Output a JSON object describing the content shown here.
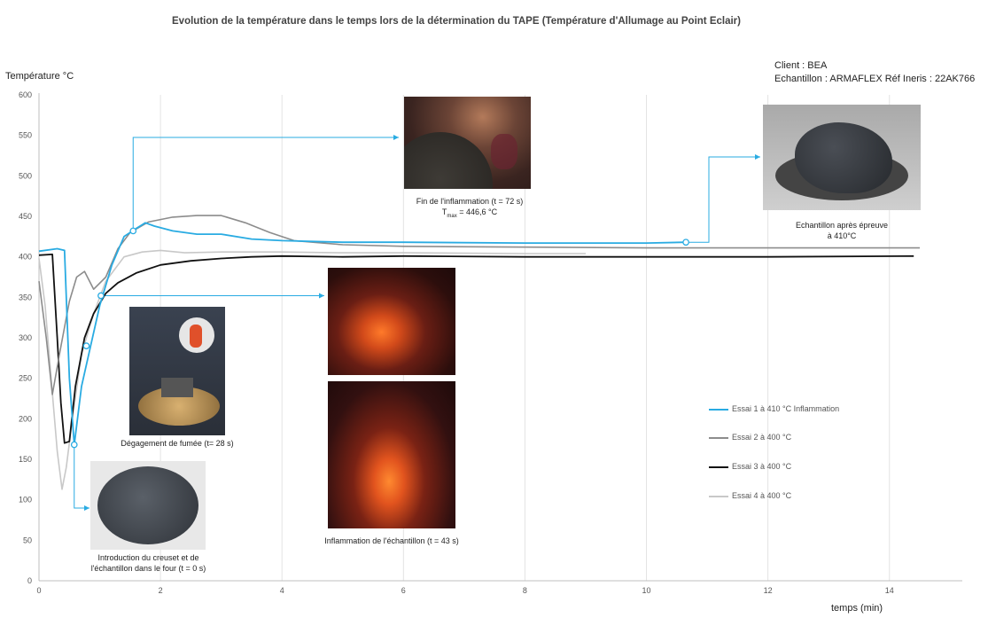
{
  "chart_data": {
    "type": "line",
    "title": "Evolution de la température dans le temps lors de la détermination du TAPE (Température d'Allumage au Point Eclair)",
    "xlabel": "temps (min)",
    "ylabel": "Température °C",
    "xlim": [
      0,
      15.2
    ],
    "ylim": [
      0,
      600
    ],
    "xticks": [
      0,
      2,
      4,
      6,
      8,
      10,
      12,
      14
    ],
    "yticks": [
      0,
      50,
      100,
      150,
      200,
      250,
      300,
      350,
      400,
      450,
      500,
      550,
      600
    ],
    "grid": "vertical",
    "legend_position": "bottom-right",
    "series": [
      {
        "name": "Essai 1 à  410 °C Inflammation",
        "color": "#29abe2",
        "width": 1.8,
        "x": [
          0,
          0.3,
          0.42,
          0.5,
          0.58,
          0.7,
          0.85,
          1.0,
          1.2,
          1.4,
          1.6,
          1.75,
          1.9,
          2.2,
          2.6,
          3.0,
          3.5,
          4.0,
          5.0,
          6.0,
          8.0,
          10.0,
          10.65
        ],
        "y": [
          407,
          410,
          408,
          250,
          168,
          240,
          290,
          340,
          390,
          425,
          435,
          442,
          438,
          432,
          428,
          428,
          422,
          420,
          418,
          418,
          417,
          417,
          418
        ]
      },
      {
        "name": "Essai 2 à  400 °C",
        "color": "#8c8c8c",
        "width": 1.6,
        "x": [
          0,
          0.12,
          0.22,
          0.35,
          0.5,
          0.62,
          0.75,
          0.9,
          1.1,
          1.3,
          1.5,
          1.8,
          2.2,
          2.6,
          3.0,
          3.4,
          3.8,
          4.2,
          5.0,
          6.0,
          8.0,
          10.0,
          12.0,
          14.5
        ],
        "y": [
          370,
          300,
          230,
          285,
          345,
          375,
          382,
          360,
          375,
          410,
          430,
          443,
          449,
          451,
          451,
          442,
          430,
          420,
          415,
          413,
          412,
          411,
          411,
          411
        ]
      },
      {
        "name": "Essai 3 à  400 °C",
        "color": "#111111",
        "width": 1.8,
        "x": [
          0,
          0.22,
          0.3,
          0.36,
          0.42,
          0.5,
          0.6,
          0.75,
          0.9,
          1.1,
          1.3,
          1.6,
          2.0,
          2.5,
          3.0,
          3.5,
          4.0,
          5.0,
          6.0,
          8.0,
          10.0,
          12.0,
          14.4
        ],
        "y": [
          402,
          403,
          300,
          220,
          170,
          172,
          240,
          300,
          330,
          355,
          368,
          380,
          390,
          395,
          398,
          400,
          401,
          400,
          401,
          400,
          400,
          400,
          401
        ]
      },
      {
        "name": "Essai 4 à  400 °C",
        "color": "#c8c8c8",
        "width": 1.6,
        "x": [
          0,
          0.1,
          0.2,
          0.3,
          0.38,
          0.45,
          0.55,
          0.7,
          0.9,
          1.1,
          1.4,
          1.7,
          2.0,
          2.4,
          3.0,
          4.0,
          5.0,
          6.0,
          8.0,
          9.0
        ],
        "y": [
          398,
          340,
          250,
          160,
          113,
          140,
          200,
          280,
          330,
          370,
          400,
          406,
          408,
          405,
          406,
          406,
          405,
          405,
          404,
          404
        ]
      }
    ],
    "marker_points": [
      {
        "series": 0,
        "x": 0.58,
        "y": 168
      },
      {
        "series": 0,
        "x": 0.78,
        "y": 290
      },
      {
        "series": 0,
        "x": 1.02,
        "y": 352
      },
      {
        "series": 0,
        "x": 1.55,
        "y": 432
      },
      {
        "series": 0,
        "x": 10.65,
        "y": 418
      }
    ],
    "annotations": [
      {
        "text": "Introduction du creuset et de l'échantillon dans le four (t = 0 s)"
      },
      {
        "text": "Dégagement de fumée (t= 28 s)"
      },
      {
        "text": "Inflammation de l'échantillon (t = 43 s)"
      },
      {
        "text": "Fin de l'inflammation  (t = 72 s)",
        "tmax_label": "T",
        "tmax_sub": "max",
        "tmax_value": "=  446,6 °C"
      },
      {
        "text": "Echantillon après épreuve à 410°C"
      }
    ]
  },
  "info": {
    "client": "Client : BEA",
    "echantillon": "Echantillon : ARMAFLEX  Réf Ineris : 22AK766"
  },
  "captions": {
    "intro_line1": "Introduction du creuset et de",
    "intro_line2": "l'échantillon dans le four (t = 0 s)",
    "fumee": "Dégagement de fumée (t= 28 s)",
    "inflammation": "Inflammation de l'échantillon (t = 43 s)",
    "fin": "Fin de l'inflammation  (t = 72 s)",
    "tmax_label": "T",
    "tmax_sub": "max",
    "tmax_value": "=  446,6 °C",
    "apres_line1": "Echantillon après épreuve",
    "apres_line2": "à 410°C"
  }
}
